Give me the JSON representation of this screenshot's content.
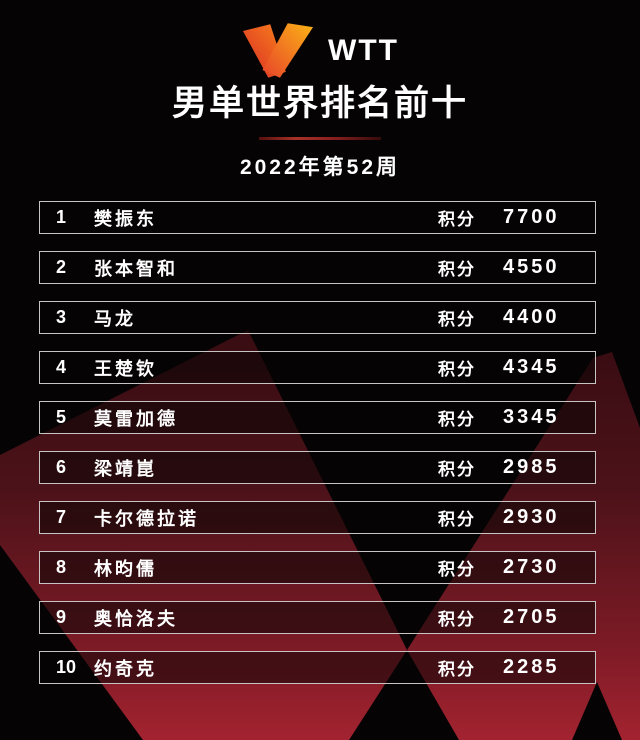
{
  "header": {
    "logo_text": "WTT",
    "title": "男单世界排名前十",
    "subtitle": "2022年第52周"
  },
  "list": {
    "points_label": "积分",
    "rows": [
      {
        "rank": "1",
        "name": "樊振东",
        "points": "7700"
      },
      {
        "rank": "2",
        "name": "张本智和",
        "points": "4550"
      },
      {
        "rank": "3",
        "name": "马龙",
        "points": "4400"
      },
      {
        "rank": "4",
        "name": "王楚钦",
        "points": "4345"
      },
      {
        "rank": "5",
        "name": "莫雷加德",
        "points": "3345"
      },
      {
        "rank": "6",
        "name": "梁靖崑",
        "points": "2985"
      },
      {
        "rank": "7",
        "name": "卡尔德拉诺",
        "points": "2930"
      },
      {
        "rank": "8",
        "name": "林昀儒",
        "points": "2730"
      },
      {
        "rank": "9",
        "name": "奥恰洛夫",
        "points": "2705"
      },
      {
        "rank": "10",
        "name": "约奇克",
        "points": "2285"
      }
    ]
  },
  "colors": {
    "background": "#000000",
    "motif_red_bright": "#a32330",
    "motif_red_dark": "#3a0d13",
    "logo_gradient_start": "#d92b27",
    "logo_gradient_end": "#f9a11b",
    "row_border": "#c9c4c4",
    "text": "#ffffff"
  },
  "chart_data": {
    "type": "table",
    "title": "男单世界排名前十",
    "subtitle": "2022年第52周",
    "columns": [
      "rank",
      "player",
      "积分"
    ],
    "rows": [
      [
        "1",
        "樊振东",
        7700
      ],
      [
        "2",
        "张本智和",
        4550
      ],
      [
        "3",
        "马龙",
        4400
      ],
      [
        "4",
        "王楚钦",
        4345
      ],
      [
        "5",
        "莫雷加德",
        3345
      ],
      [
        "6",
        "梁靖崑",
        2985
      ],
      [
        "7",
        "卡尔德拉诺",
        2930
      ],
      [
        "8",
        "林昀儒",
        2730
      ],
      [
        "9",
        "奥恰洛夫",
        2705
      ],
      [
        "10",
        "约奇克",
        2285
      ]
    ]
  }
}
